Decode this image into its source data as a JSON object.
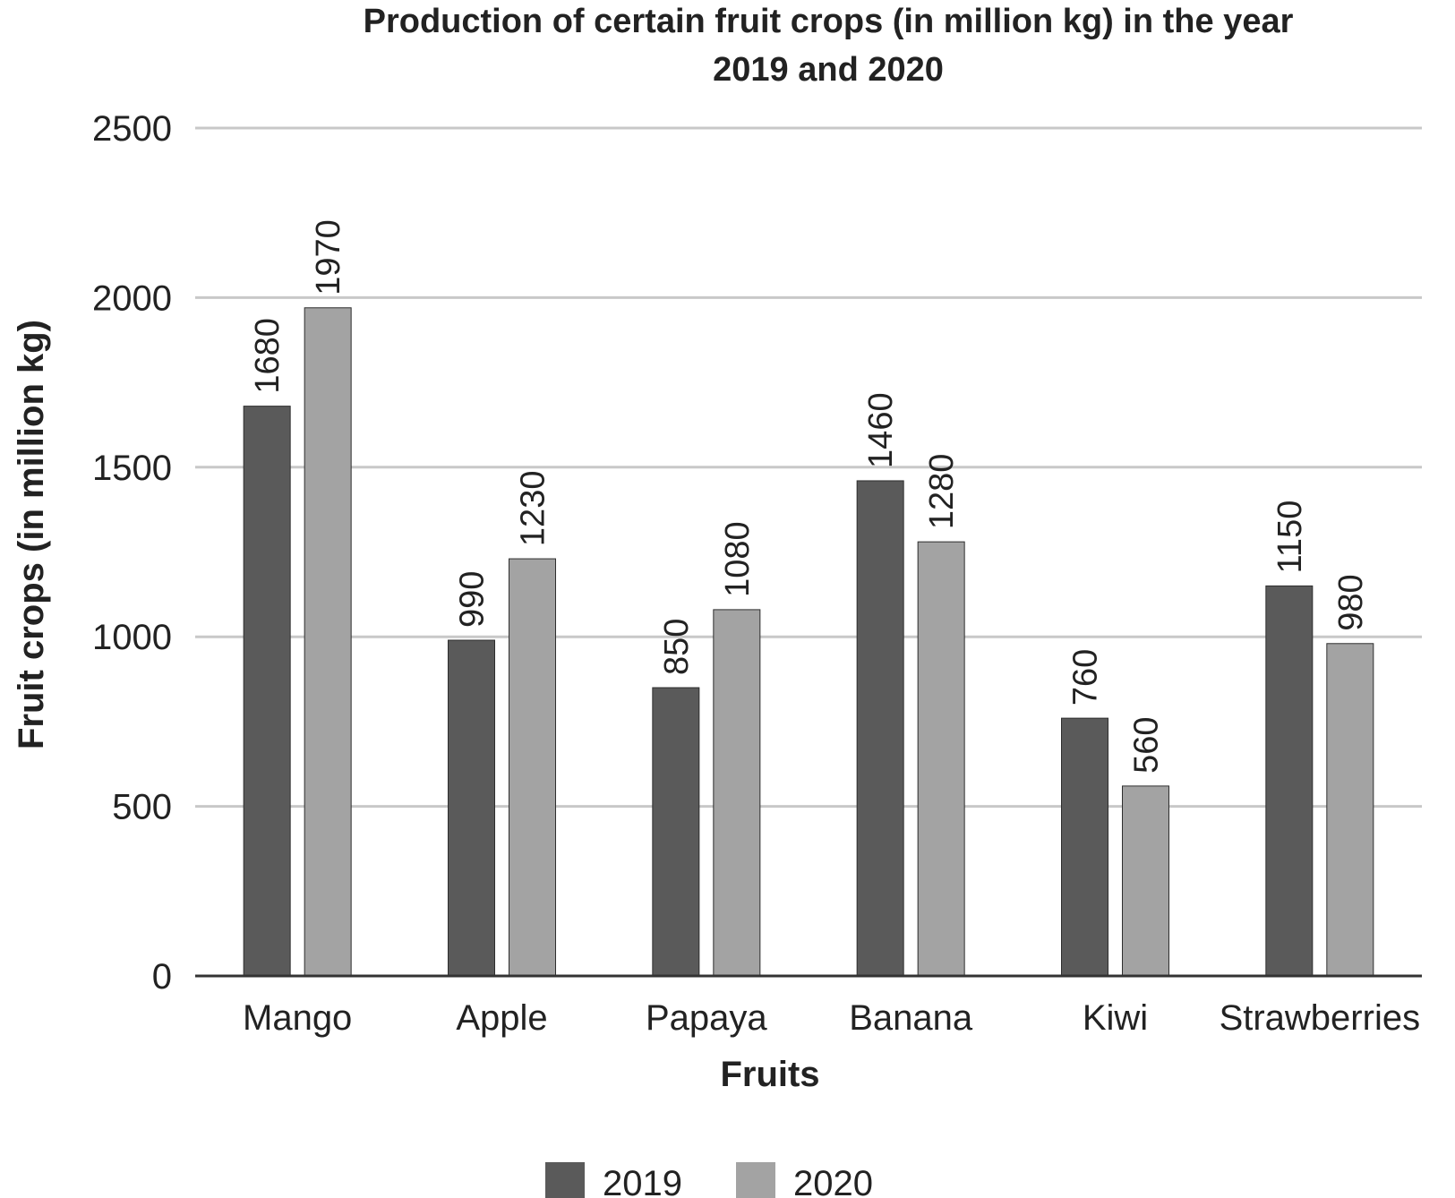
{
  "chart_data": {
    "type": "bar",
    "title_line1": "Production of certain fruit crops (in million kg) in the year",
    "title_line2": "2019 and 2020",
    "xlabel": "Fruits",
    "ylabel": "Fruit crops (in million kg)",
    "categories": [
      "Mango",
      "Apple",
      "Papaya",
      "Banana",
      "Kiwi",
      "Strawberries"
    ],
    "series": [
      {
        "name": "2019",
        "color": "#5a5a5a",
        "values": [
          1680,
          990,
          850,
          1460,
          760,
          1150
        ]
      },
      {
        "name": "2020",
        "color": "#a3a3a3",
        "values": [
          1970,
          1230,
          1080,
          1280,
          560,
          980
        ]
      }
    ],
    "ylim": [
      0,
      2500
    ],
    "yticks": [
      "0",
      "500",
      "1000",
      "1500",
      "2000",
      "2500"
    ],
    "grid": true,
    "grid_color": "#c8c8c8",
    "legend": "bottom"
  }
}
